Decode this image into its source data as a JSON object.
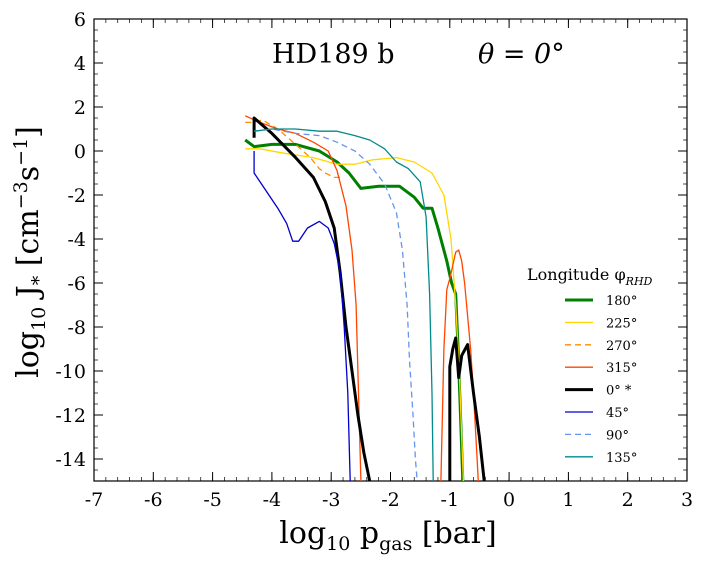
{
  "chart_data": {
    "type": "line",
    "title": "HD189 b",
    "annotation": "θ = 0°",
    "xlabel": "log10 pgas [bar]",
    "ylabel": "log10 J* [cm^-3 s^-1]",
    "xlim": [
      -7,
      3
    ],
    "ylim": [
      -15,
      6
    ],
    "x_ticks": [
      -7,
      -6,
      -5,
      -4,
      -3,
      -2,
      -1,
      0,
      1,
      2,
      3
    ],
    "y_ticks": [
      6,
      4,
      2,
      0,
      -2,
      -4,
      -6,
      -8,
      -10,
      -12,
      -14
    ],
    "legend_title": "Longitude φRHD",
    "series": [
      {
        "name": "180°",
        "color": "#008000",
        "width": 3.0,
        "dash": "",
        "x": [
          -4.45,
          -4.3,
          -4.0,
          -3.6,
          -3.2,
          -2.9,
          -2.7,
          -2.5,
          -2.2,
          -2.05,
          -1.85,
          -1.6,
          -1.45,
          -1.3,
          -1.2,
          -1.05,
          -0.97,
          -0.9,
          -0.86,
          -0.82,
          -0.78
        ],
        "y": [
          0.5,
          0.2,
          0.3,
          0.3,
          0.0,
          -0.5,
          -1.0,
          -1.7,
          -1.6,
          -1.6,
          -1.6,
          -2.1,
          -2.6,
          -2.6,
          -3.5,
          -5.0,
          -6.0,
          -6.5,
          -9.0,
          -12.0,
          -15.0
        ]
      },
      {
        "name": "225°",
        "color": "#ffd700",
        "width": 1.3,
        "dash": "",
        "x": [
          -4.45,
          -4.2,
          -3.8,
          -3.3,
          -2.9,
          -2.6,
          -2.3,
          -1.9,
          -1.6,
          -1.3,
          -1.1,
          -0.98,
          -0.9,
          -0.84,
          -0.8,
          -0.77
        ],
        "y": [
          0.1,
          0.1,
          -0.1,
          -0.3,
          -0.6,
          -0.6,
          -0.4,
          -0.3,
          -0.5,
          -1.0,
          -2.0,
          -4.0,
          -7.0,
          -10.0,
          -13.0,
          -15.0
        ]
      },
      {
        "name": "270°",
        "color": "#ff8c00",
        "width": 1.3,
        "dash": "6,4",
        "x": [
          -4.45,
          -4.35,
          -4.15,
          -3.9,
          -3.6,
          -3.35,
          -3.2,
          -3.1,
          -2.95,
          -2.8
        ],
        "y": [
          1.3,
          1.3,
          1.4,
          1.0,
          0.3,
          -0.3,
          -0.8,
          -1.0,
          -1.2,
          -1.2
        ]
      },
      {
        "name": "315°",
        "color": "#ff4500",
        "width": 1.3,
        "dash": "",
        "x": [
          -4.45,
          -4.2,
          -3.9,
          -3.6,
          -3.3,
          -3.05,
          -2.9,
          -2.75,
          -2.65,
          -2.58,
          -2.55,
          -2.52,
          -2.5
        ],
        "y": [
          1.6,
          1.3,
          1.0,
          0.8,
          0.4,
          0.0,
          -0.9,
          -2.5,
          -4.5,
          -7.0,
          -10.0,
          -13.0,
          -15.0
        ]
      },
      {
        "name": "315° (deep branch)",
        "color": "#ff4500",
        "width": 1.3,
        "dash": "",
        "x": [
          -1.15,
          -1.1,
          -1.05,
          -1.0,
          -0.95,
          -0.9,
          -0.85,
          -0.8,
          -0.75,
          -0.7,
          -0.65,
          -0.6,
          -0.57,
          -0.54,
          -0.52
        ],
        "y": [
          -15.0,
          -9.0,
          -6.3,
          -5.8,
          -5.2,
          -4.6,
          -4.5,
          -5.0,
          -6.0,
          -7.5,
          -9.0,
          -11.0,
          -12.5,
          -14.0,
          -15.0
        ]
      },
      {
        "name": "0° *",
        "color": "#000000",
        "width": 3.0,
        "dash": "",
        "x": [
          -4.3,
          -4.3,
          -4.0,
          -3.6,
          -3.3,
          -3.1,
          -2.95,
          -2.85,
          -2.75,
          -2.65,
          -2.55,
          -2.45,
          -2.35
        ],
        "y": [
          0.6,
          1.5,
          0.8,
          -0.3,
          -1.2,
          -2.3,
          -3.5,
          -5.5,
          -8.0,
          -10.0,
          -12.0,
          -13.7,
          -15.0
        ]
      },
      {
        "name": "0° * (deep branch)",
        "color": "#000000",
        "width": 3.0,
        "dash": "",
        "x": [
          -1.0,
          -1.0,
          -0.95,
          -0.9,
          -0.85,
          -0.8,
          -0.7,
          -0.6,
          -0.5,
          -0.42
        ],
        "y": [
          -15.0,
          -9.8,
          -9.0,
          -8.5,
          -10.3,
          -9.3,
          -8.8,
          -11.0,
          -13.0,
          -15.0
        ]
      },
      {
        "name": "45°",
        "color": "#0000cd",
        "width": 1.3,
        "dash": "",
        "x": [
          -4.3,
          -4.3,
          -4.15,
          -3.9,
          -3.75,
          -3.65,
          -3.55,
          -3.4,
          -3.2,
          -3.05,
          -2.95,
          -2.85,
          -2.78,
          -2.72,
          -2.7,
          -2.68
        ],
        "y": [
          0.0,
          -1.0,
          -1.6,
          -2.6,
          -3.3,
          -4.1,
          -4.1,
          -3.5,
          -3.2,
          -3.5,
          -4.2,
          -5.5,
          -8.0,
          -11.0,
          -13.0,
          -15.0
        ]
      },
      {
        "name": "90°",
        "color": "#6495ed",
        "width": 1.3,
        "dash": "6,4",
        "x": [
          -4.3,
          -4.0,
          -3.6,
          -3.2,
          -2.9,
          -2.6,
          -2.35,
          -2.1,
          -1.9,
          -1.8,
          -1.72,
          -1.68,
          -1.62,
          -1.58,
          -1.55
        ],
        "y": [
          0.9,
          1.0,
          0.8,
          0.7,
          0.4,
          0.0,
          -0.6,
          -1.5,
          -2.8,
          -4.5,
          -7.0,
          -9.5,
          -12.0,
          -14.0,
          -15.0
        ]
      },
      {
        "name": "135°",
        "color": "#008b8b",
        "width": 1.3,
        "dash": "",
        "x": [
          -4.3,
          -4.0,
          -3.6,
          -3.2,
          -2.9,
          -2.6,
          -2.35,
          -2.1,
          -1.9,
          -1.7,
          -1.5,
          -1.4,
          -1.34,
          -1.3,
          -1.28
        ],
        "y": [
          0.9,
          1.0,
          1.0,
          0.9,
          0.9,
          0.7,
          0.5,
          0.1,
          -0.5,
          -0.8,
          -1.4,
          -3.0,
          -6.5,
          -11.0,
          -15.0
        ]
      }
    ],
    "legend": [
      {
        "label": "180°",
        "color": "#008000",
        "width": 3.0,
        "dash": ""
      },
      {
        "label": "225°",
        "color": "#ffd700",
        "width": 1.3,
        "dash": ""
      },
      {
        "label": "270°",
        "color": "#ff8c00",
        "width": 1.3,
        "dash": "6,4"
      },
      {
        "label": "315°",
        "color": "#ff4500",
        "width": 1.3,
        "dash": ""
      },
      {
        "label": "0° *",
        "color": "#000000",
        "width": 3.0,
        "dash": ""
      },
      {
        "label": "45°",
        "color": "#0000cd",
        "width": 1.3,
        "dash": ""
      },
      {
        "label": "90°",
        "color": "#6495ed",
        "width": 1.3,
        "dash": "6,4"
      },
      {
        "label": "135°",
        "color": "#008b8b",
        "width": 1.3,
        "dash": ""
      }
    ]
  }
}
